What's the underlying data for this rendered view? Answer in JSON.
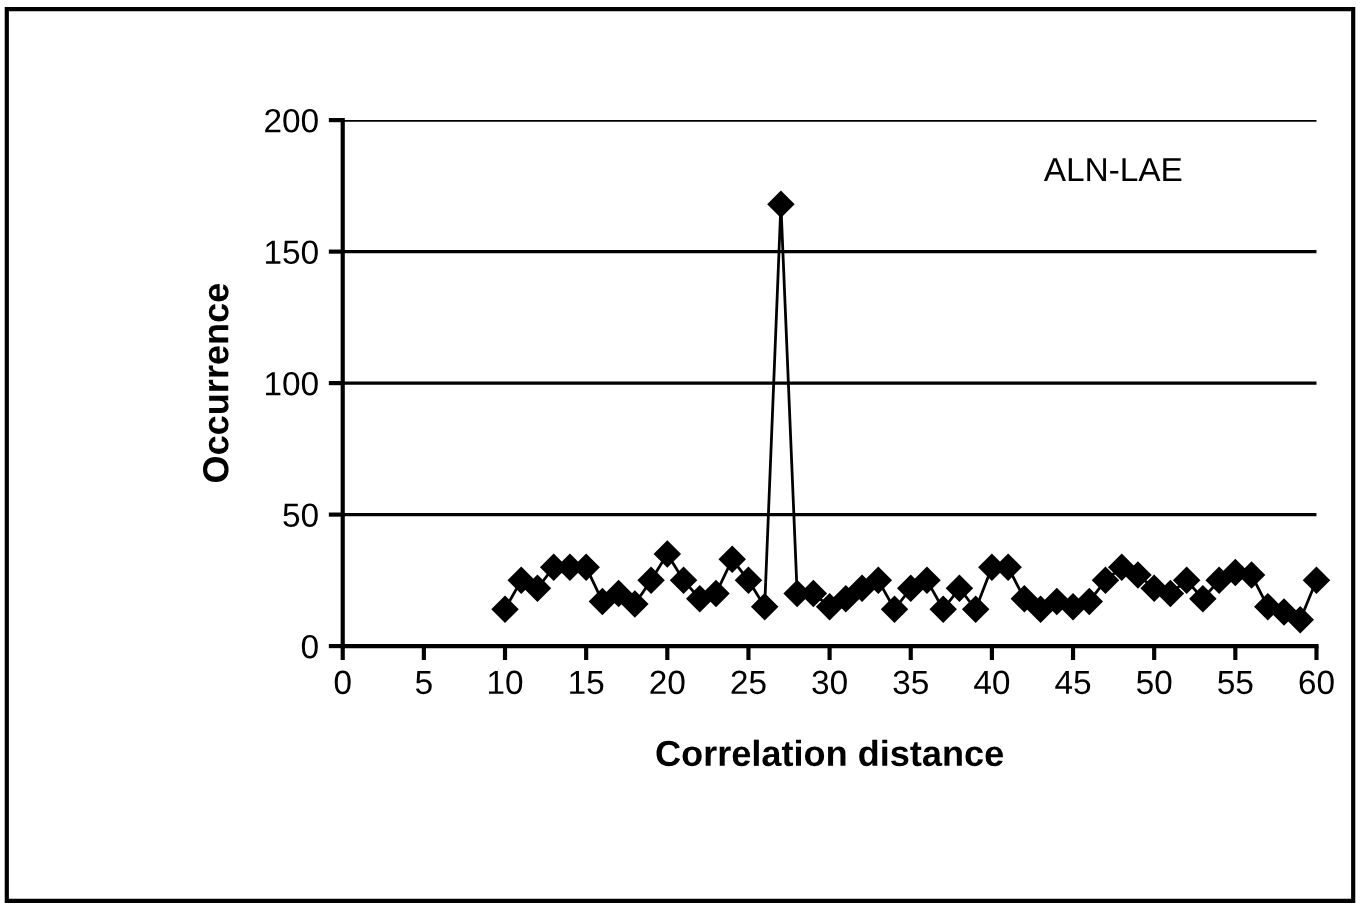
{
  "chart_data": {
    "type": "line",
    "xlabel": "Correlation distance",
    "ylabel": "Occurrence",
    "annotations": [
      "ALN-LAE"
    ],
    "x": [
      10,
      11,
      12,
      13,
      14,
      15,
      16,
      17,
      18,
      19,
      20,
      21,
      22,
      23,
      24,
      25,
      26,
      27,
      28,
      29,
      30,
      31,
      32,
      33,
      34,
      35,
      36,
      37,
      38,
      39,
      40,
      41,
      42,
      43,
      44,
      45,
      46,
      47,
      48,
      49,
      50,
      51,
      52,
      53,
      54,
      55,
      56,
      57,
      58,
      59,
      60
    ],
    "series": [
      {
        "color": "#000000",
        "values": [
          14,
          25,
          22,
          30,
          30,
          30,
          17,
          20,
          16,
          25,
          35,
          25,
          18,
          20,
          33,
          25,
          15,
          168,
          20,
          20,
          15,
          18,
          22,
          25,
          14,
          22,
          25,
          14,
          22,
          14,
          30,
          30,
          18,
          14,
          17,
          15,
          17,
          25,
          30,
          27,
          22,
          20,
          25,
          18,
          25,
          28,
          27,
          15,
          13,
          10,
          25
        ]
      }
    ],
    "xlim": [
      0,
      60
    ],
    "xticks": [
      0,
      5,
      10,
      15,
      20,
      25,
      30,
      35,
      40,
      45,
      50,
      55,
      60
    ],
    "ylim": [
      0,
      200
    ],
    "yticks": [
      0,
      50,
      100,
      150,
      200
    ],
    "grid": "y",
    "marker": "diamond",
    "line_style": "solid"
  }
}
